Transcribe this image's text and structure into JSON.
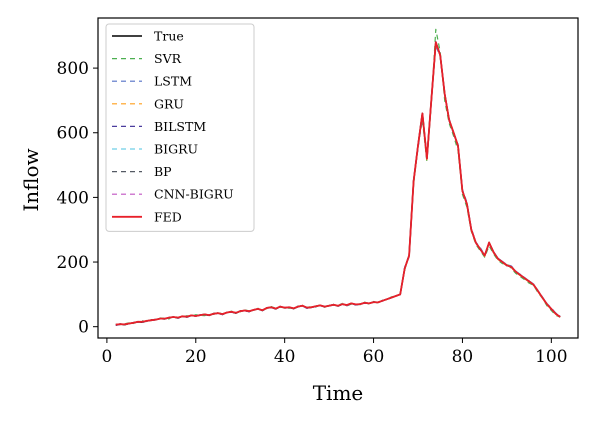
{
  "chart_data": {
    "type": "line",
    "xlabel": "Time",
    "ylabel": "Inflow",
    "xlim": [
      -2,
      106
    ],
    "ylim": [
      -35,
      955
    ],
    "x_ticks": [
      0,
      20,
      40,
      60,
      80,
      100
    ],
    "y_ticks": [
      0,
      200,
      400,
      600,
      800
    ],
    "grid": false,
    "legend_position": "top-left",
    "x": [
      2,
      3,
      4,
      5,
      6,
      7,
      8,
      9,
      10,
      11,
      12,
      13,
      14,
      15,
      16,
      17,
      18,
      19,
      20,
      21,
      22,
      23,
      24,
      25,
      26,
      27,
      28,
      29,
      30,
      31,
      32,
      33,
      34,
      35,
      36,
      37,
      38,
      39,
      40,
      41,
      42,
      43,
      44,
      45,
      46,
      47,
      48,
      49,
      50,
      51,
      52,
      53,
      54,
      55,
      56,
      57,
      58,
      59,
      60,
      61,
      62,
      63,
      64,
      65,
      66,
      67,
      68,
      69,
      70,
      71,
      72,
      73,
      74,
      75,
      76,
      77,
      78,
      79,
      80,
      81,
      82,
      83,
      84,
      85,
      86,
      87,
      88,
      89,
      90,
      91,
      92,
      93,
      94,
      95,
      96,
      97,
      98,
      99,
      100,
      101,
      102
    ],
    "series": [
      {
        "name": "True",
        "color": "#000000",
        "dash": "solid",
        "width": 1.6,
        "values": [
          5,
          8,
          6,
          10,
          12,
          15,
          14,
          18,
          20,
          22,
          25,
          24,
          28,
          30,
          27,
          32,
          30,
          35,
          33,
          36,
          38,
          35,
          40,
          42,
          38,
          44,
          46,
          42,
          48,
          50,
          47,
          52,
          55,
          50,
          58,
          60,
          55,
          62,
          58,
          60,
          56,
          62,
          65,
          58,
          60,
          63,
          66,
          62,
          65,
          68,
          64,
          70,
          66,
          72,
          68,
          70,
          74,
          72,
          76,
          75,
          80,
          85,
          90,
          95,
          100,
          180,
          220,
          450,
          560,
          660,
          520,
          700,
          880,
          840,
          720,
          640,
          600,
          560,
          420,
          380,
          300,
          260,
          240,
          220,
          260,
          230,
          210,
          200,
          190,
          185,
          170,
          160,
          150,
          140,
          130,
          110,
          90,
          70,
          55,
          40,
          30
        ]
      },
      {
        "name": "SVR",
        "color": "#4caf50",
        "dash": "5,4",
        "width": 1.2,
        "values": [
          8,
          6,
          9,
          12,
          10,
          16,
          18,
          16,
          22,
          20,
          27,
          26,
          24,
          33,
          28,
          30,
          34,
          32,
          37,
          35,
          34,
          40,
          38,
          44,
          40,
          42,
          48,
          44,
          46,
          52,
          49,
          50,
          57,
          52,
          56,
          62,
          57,
          60,
          60,
          57,
          58,
          64,
          63,
          60,
          62,
          61,
          68,
          60,
          67,
          66,
          66,
          72,
          64,
          70,
          70,
          68,
          76,
          70,
          78,
          73,
          82,
          83,
          92,
          93,
          102,
          175,
          225,
          440,
          555,
          640,
          510,
          690,
          920,
          850,
          700,
          630,
          590,
          545,
          410,
          370,
          295,
          255,
          235,
          215,
          250,
          225,
          205,
          195,
          195,
          180,
          165,
          155,
          145,
          135,
          128,
          105,
          88,
          65,
          50,
          35,
          30
        ]
      },
      {
        "name": "LSTM",
        "color": "#5470c6",
        "dash": "5,4",
        "width": 1.2,
        "values": [
          6,
          9,
          7,
          11,
          13,
          14,
          16,
          17,
          21,
          23,
          24,
          26,
          29,
          29,
          29,
          31,
          32,
          34,
          34,
          37,
          37,
          37,
          39,
          41,
          40,
          43,
          45,
          44,
          47,
          49,
          49,
          51,
          54,
          52,
          57,
          59,
          57,
          61,
          60,
          59,
          57,
          61,
          64,
          60,
          59,
          62,
          65,
          63,
          64,
          67,
          65,
          69,
          67,
          71,
          69,
          69,
          73,
          73,
          75,
          76,
          79,
          86,
          89,
          96,
          99,
          185,
          215,
          455,
          550,
          650,
          530,
          695,
          870,
          835,
          715,
          645,
          595,
          565,
          425,
          385,
          305,
          262,
          245,
          222,
          262,
          232,
          212,
          202,
          192,
          188,
          172,
          162,
          152,
          142,
          132,
          112,
          92,
          72,
          58,
          42,
          32
        ]
      },
      {
        "name": "GRU",
        "color": "#ff9f1c",
        "dash": "5,4",
        "width": 1.2,
        "values": [
          7,
          8,
          8,
          11,
          11,
          16,
          15,
          19,
          19,
          23,
          26,
          25,
          27,
          31,
          28,
          31,
          31,
          36,
          34,
          35,
          39,
          36,
          41,
          41,
          39,
          43,
          47,
          43,
          47,
          51,
          48,
          51,
          56,
          51,
          57,
          61,
          56,
          61,
          59,
          61,
          57,
          61,
          66,
          59,
          61,
          62,
          67,
          61,
          66,
          67,
          65,
          71,
          65,
          73,
          67,
          71,
          73,
          73,
          75,
          76,
          81,
          84,
          91,
          94,
          101,
          178,
          218,
          445,
          555,
          655,
          515,
          698,
          875,
          838,
          718,
          642,
          602,
          558,
          418,
          382,
          298,
          258,
          242,
          218,
          262,
          228,
          208,
          198,
          188,
          183,
          168,
          158,
          148,
          138,
          128,
          108,
          88,
          68,
          53,
          38,
          28
        ]
      },
      {
        "name": "BILSTM",
        "color": "#4b3c9e",
        "dash": "5,4",
        "width": 1.2,
        "values": [
          4,
          7,
          7,
          9,
          13,
          14,
          13,
          19,
          19,
          21,
          24,
          25,
          27,
          31,
          26,
          33,
          29,
          34,
          32,
          37,
          37,
          34,
          41,
          41,
          37,
          45,
          45,
          41,
          49,
          49,
          46,
          53,
          54,
          49,
          59,
          59,
          54,
          63,
          57,
          61,
          55,
          63,
          64,
          57,
          61,
          62,
          65,
          61,
          64,
          69,
          63,
          71,
          65,
          71,
          67,
          71,
          73,
          71,
          77,
          74,
          81,
          84,
          89,
          96,
          99,
          182,
          222,
          452,
          562,
          662,
          518,
          702,
          882,
          842,
          722,
          638,
          598,
          562,
          422,
          378,
          302,
          262,
          238,
          222,
          258,
          232,
          212,
          202,
          188,
          187,
          168,
          162,
          148,
          142,
          128,
          112,
          88,
          72,
          53,
          42,
          28
        ]
      },
      {
        "name": "BIGRU",
        "color": "#6fcfe8",
        "dash": "5,4",
        "width": 1.2,
        "values": [
          6,
          9,
          6,
          11,
          12,
          16,
          14,
          19,
          20,
          23,
          25,
          25,
          28,
          31,
          27,
          33,
          30,
          36,
          33,
          37,
          38,
          36,
          40,
          43,
          38,
          45,
          46,
          43,
          48,
          51,
          47,
          53,
          55,
          51,
          58,
          61,
          55,
          63,
          58,
          61,
          56,
          63,
          65,
          59,
          60,
          64,
          66,
          63,
          65,
          69,
          64,
          71,
          66,
          73,
          68,
          71,
          74,
          73,
          76,
          76,
          80,
          86,
          90,
          96,
          100,
          181,
          221,
          451,
          561,
          661,
          521,
          701,
          881,
          841,
          721,
          641,
          601,
          561,
          421,
          381,
          301,
          261,
          241,
          221,
          261,
          231,
          211,
          201,
          191,
          186,
          171,
          161,
          151,
          141,
          131,
          111,
          91,
          71,
          56,
          41,
          31
        ]
      },
      {
        "name": "BP",
        "color": "#555a64",
        "dash": "5,4",
        "width": 1.2,
        "values": [
          5,
          9,
          6,
          10,
          13,
          15,
          15,
          18,
          21,
          22,
          26,
          24,
          29,
          30,
          28,
          32,
          31,
          35,
          34,
          36,
          39,
          35,
          41,
          42,
          39,
          44,
          47,
          42,
          49,
          50,
          48,
          52,
          56,
          50,
          59,
          60,
          56,
          62,
          59,
          60,
          57,
          62,
          66,
          58,
          61,
          63,
          67,
          62,
          66,
          68,
          65,
          70,
          67,
          72,
          69,
          70,
          75,
          72,
          77,
          75,
          81,
          85,
          91,
          95,
          101,
          179,
          219,
          449,
          559,
          659,
          519,
          699,
          879,
          839,
          719,
          639,
          599,
          559,
          419,
          379,
          299,
          259,
          239,
          219,
          259,
          229,
          209,
          199,
          189,
          184,
          169,
          159,
          149,
          139,
          129,
          109,
          89,
          69,
          54,
          39,
          29
        ]
      },
      {
        "name": "CNN-BIGRU",
        "color": "#c054c2",
        "dash": "5,4",
        "width": 1.2,
        "values": [
          7,
          7,
          8,
          10,
          11,
          15,
          15,
          18,
          20,
          21,
          25,
          25,
          28,
          29,
          28,
          32,
          31,
          35,
          33,
          35,
          38,
          36,
          40,
          41,
          39,
          44,
          46,
          43,
          48,
          49,
          48,
          52,
          55,
          51,
          58,
          59,
          56,
          62,
          59,
          59,
          57,
          62,
          65,
          59,
          60,
          62,
          66,
          62,
          65,
          67,
          65,
          70,
          66,
          71,
          69,
          70,
          74,
          72,
          76,
          74,
          81,
          85,
          90,
          94,
          101,
          180,
          220,
          450,
          560,
          660,
          520,
          700,
          880,
          840,
          720,
          640,
          600,
          560,
          420,
          380,
          300,
          260,
          240,
          220,
          260,
          230,
          210,
          200,
          190,
          185,
          170,
          160,
          150,
          140,
          130,
          110,
          90,
          70,
          55,
          40,
          30
        ]
      },
      {
        "name": "FED",
        "color": "#e8202a",
        "dash": "solid",
        "width": 1.8,
        "values": [
          6,
          8,
          7,
          10,
          12,
          15,
          15,
          18,
          20,
          22,
          25,
          25,
          28,
          30,
          28,
          32,
          31,
          35,
          33,
          36,
          38,
          36,
          40,
          42,
          39,
          44,
          46,
          43,
          48,
          50,
          48,
          52,
          55,
          51,
          58,
          60,
          56,
          62,
          59,
          60,
          57,
          62,
          65,
          59,
          60,
          63,
          66,
          62,
          65,
          68,
          65,
          70,
          67,
          72,
          69,
          70,
          74,
          72,
          76,
          75,
          80,
          85,
          90,
          95,
          100,
          180,
          220,
          450,
          560,
          660,
          520,
          700,
          880,
          840,
          720,
          640,
          600,
          560,
          420,
          380,
          300,
          260,
          240,
          220,
          260,
          230,
          210,
          200,
          190,
          185,
          170,
          160,
          150,
          140,
          130,
          110,
          90,
          70,
          55,
          40,
          30
        ]
      }
    ]
  }
}
